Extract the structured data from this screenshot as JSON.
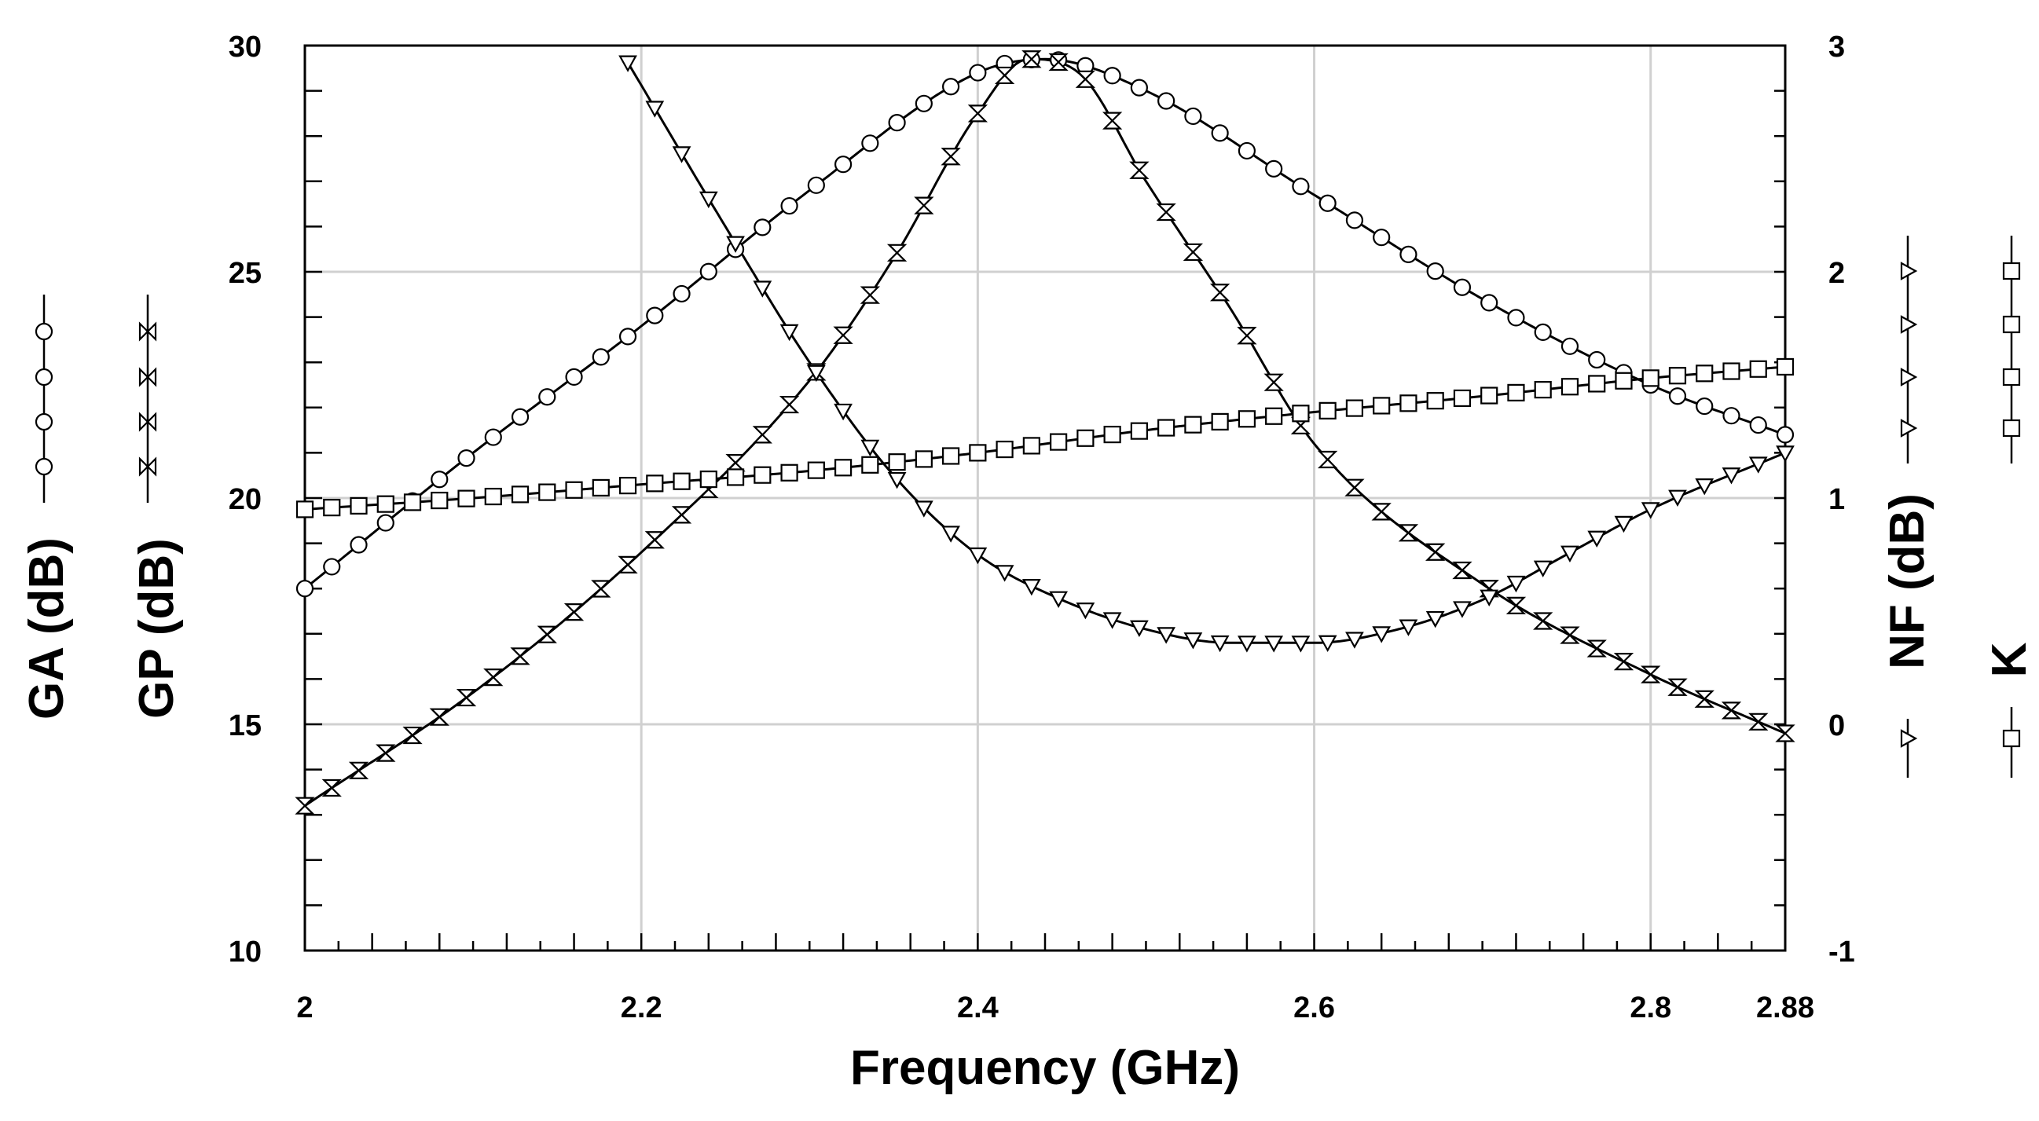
{
  "chart_data": {
    "type": "line",
    "xlabel": "Frequency (GHz)",
    "xlim": [
      2,
      2.88
    ],
    "xticks": [
      2,
      2.2,
      2.4,
      2.6,
      2.8,
      2.88
    ],
    "xtick_labels": [
      "2",
      "2.2",
      "2.4",
      "2.6",
      "2.8",
      "2.88"
    ],
    "left_axis": {
      "ylim": [
        10,
        30
      ],
      "ticks": [
        10,
        15,
        20,
        25,
        30
      ],
      "tick_labels": [
        "10",
        "15",
        "20",
        "25",
        "30"
      ]
    },
    "right_axis": {
      "ylim": [
        -1,
        3
      ],
      "ticks": [
        -1,
        0,
        1,
        2,
        3
      ],
      "tick_labels": [
        "-1",
        "0",
        "1",
        "2",
        "3"
      ]
    },
    "grid": true,
    "series": [
      {
        "name": "GA",
        "label": "GA (dB)",
        "axis": "left",
        "marker": "circle",
        "x": [
          2.0,
          2.1,
          2.2,
          2.3,
          2.4,
          2.44,
          2.5,
          2.6,
          2.7,
          2.8,
          2.88
        ],
        "y": [
          18.0,
          21.0,
          23.8,
          26.8,
          29.4,
          29.7,
          29.0,
          26.7,
          24.4,
          22.5,
          21.4
        ]
      },
      {
        "name": "GP",
        "label": "GP (dB)",
        "axis": "left",
        "marker": "bowtie",
        "x": [
          2.0,
          2.1,
          2.2,
          2.3,
          2.35,
          2.4,
          2.43,
          2.46,
          2.5,
          2.55,
          2.6,
          2.7,
          2.8,
          2.88
        ],
        "y": [
          13.2,
          15.7,
          18.8,
          22.6,
          25.3,
          28.5,
          29.7,
          29.4,
          27.0,
          24.2,
          21.2,
          18.1,
          16.1,
          14.8
        ]
      },
      {
        "name": "NF",
        "label": "NF (dB)",
        "axis": "right",
        "marker": "triangle",
        "x": [
          2.19,
          2.25,
          2.3,
          2.35,
          2.4,
          2.45,
          2.5,
          2.55,
          2.6,
          2.65,
          2.7,
          2.75,
          2.8,
          2.88
        ],
        "y": [
          2.95,
          2.2,
          1.6,
          1.1,
          0.75,
          0.55,
          0.42,
          0.36,
          0.36,
          0.42,
          0.55,
          0.75,
          0.95,
          1.2
        ]
      },
      {
        "name": "K",
        "label": "K",
        "axis": "right",
        "marker": "square",
        "x": [
          2.0,
          2.1,
          2.2,
          2.3,
          2.4,
          2.5,
          2.6,
          2.7,
          2.8,
          2.88
        ],
        "y": [
          0.95,
          1.0,
          1.06,
          1.12,
          1.2,
          1.3,
          1.38,
          1.45,
          1.53,
          1.58
        ]
      }
    ]
  }
}
